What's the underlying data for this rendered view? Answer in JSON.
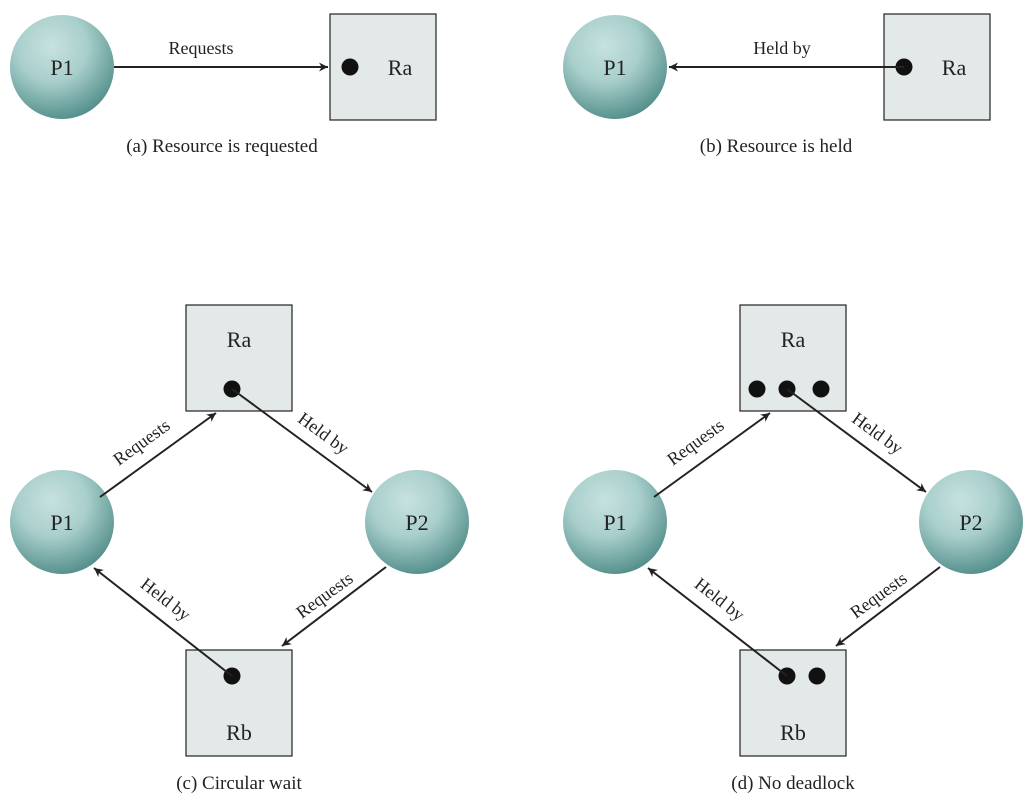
{
  "panels": {
    "a": {
      "caption": "(a) Resource is requested",
      "process": "P1",
      "resource": "Ra",
      "edge": "Requests"
    },
    "b": {
      "caption": "(b) Resource is held",
      "process": "P1",
      "resource": "Ra",
      "edge": "Held by"
    },
    "c": {
      "caption": "(c) Circular wait",
      "process_1": "P1",
      "process_2": "P2",
      "resource_top": "Ra",
      "resource_bottom": "Rb",
      "edge_p1_ra": "Requests",
      "edge_ra_p2": "Held by",
      "edge_p2_rb": "Requests",
      "edge_rb_p1": "Held by"
    },
    "d": {
      "caption": "(d) No deadlock",
      "process_1": "P1",
      "process_2": "P2",
      "resource_top": "Ra",
      "resource_bottom": "Rb",
      "edge_p1_ra": "Requests",
      "edge_ra_p2": "Held by",
      "edge_p2_rb": "Requests",
      "edge_rb_p1": "Held by"
    }
  },
  "colors": {
    "process_fill_light": "#a9cfcc",
    "process_fill_dark": "#4d8a86",
    "resource_fill": "#e3e8e8",
    "stroke": "#222222"
  }
}
